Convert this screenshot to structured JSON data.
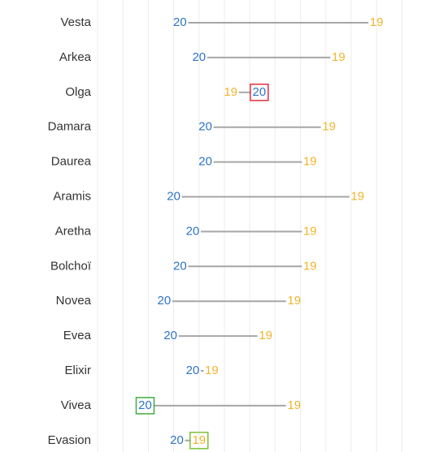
{
  "chart_data": {
    "type": "dumbbell",
    "categories": [
      "Vesta",
      "Arkea",
      "Olga",
      "Damara",
      "Daurea",
      "Aramis",
      "Aretha",
      "Bolchoï",
      "Novea",
      "Evea",
      "Elixir",
      "Vivea",
      "Evasion"
    ],
    "series": [
      {
        "name": "20",
        "color": "#2e74c9",
        "values": [
          26,
          32,
          51,
          34,
          34,
          24,
          30,
          26,
          21,
          23,
          30,
          15,
          25
        ]
      },
      {
        "name": "19",
        "color": "#f1b52d",
        "values": [
          88,
          76,
          42,
          73,
          67,
          82,
          67,
          67,
          62,
          53,
          36,
          62,
          32
        ]
      }
    ],
    "xlim": [
      0,
      100
    ],
    "xticks": [
      0,
      8,
      16,
      24,
      32,
      40,
      48,
      56,
      64,
      72,
      80,
      88,
      96
    ],
    "grid": true,
    "line_color": "#a6a6a6",
    "highlights": [
      {
        "series": 0,
        "index": 2,
        "color": "#e0303a"
      },
      {
        "series": 0,
        "index": 11,
        "color": "#3fae3f"
      },
      {
        "series": 1,
        "index": 12,
        "color": "#7cc13a"
      }
    ]
  }
}
